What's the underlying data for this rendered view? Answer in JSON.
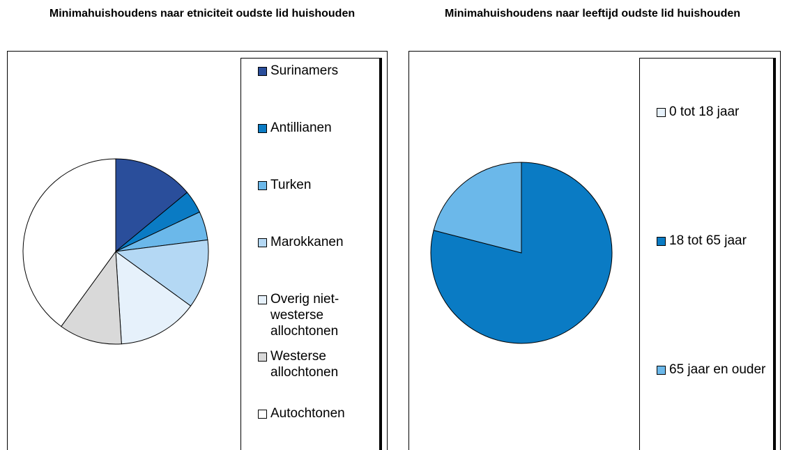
{
  "chart_data": [
    {
      "type": "pie",
      "title": "Minimahuishoudens naar etniciteit oudste lid huishouden",
      "categories": [
        "Surinamers",
        "Antillianen",
        "Turken",
        "Marokkanen",
        "Overig niet-westerse allochtonen",
        "Westerse allochtonen",
        "Autochtonen"
      ],
      "values": [
        14,
        4,
        5,
        12,
        14,
        11,
        40
      ],
      "colors": [
        "#2a4e9b",
        "#0a7bc4",
        "#6bb8ea",
        "#b4d8f4",
        "#e6f1fb",
        "#d9d9d9",
        "#ffffff"
      ]
    },
    {
      "type": "pie",
      "title": "Minimahuishoudens naar leeftijd oudste lid huishouden",
      "categories": [
        "0 tot 18 jaar",
        "18 tot 65 jaar",
        "65 jaar en ouder"
      ],
      "values": [
        0,
        79,
        21
      ],
      "colors": [
        "#e6f1fb",
        "#0a7bc4",
        "#6bb8ea"
      ]
    }
  ]
}
